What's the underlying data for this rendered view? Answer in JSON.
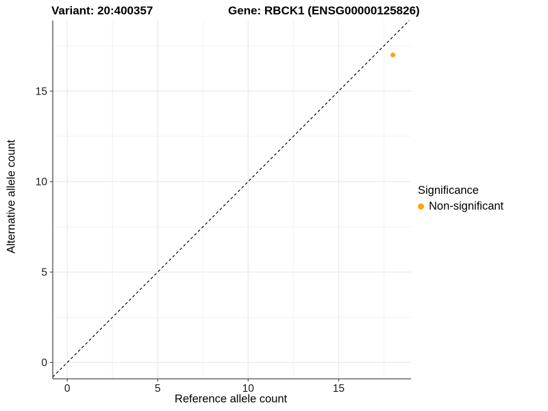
{
  "chart_data": {
    "type": "scatter",
    "title_left": "Variant: 20:400357",
    "title_right": "Gene: RBCK1 (ENSG00000125826)",
    "xlabel": "Reference allele count",
    "ylabel": "Alternative allele count",
    "xlim": [
      -0.8,
      19.0
    ],
    "ylim": [
      -0.9,
      18.9
    ],
    "x_ticks": [
      0,
      5,
      10,
      15
    ],
    "y_ticks": [
      0,
      5,
      10,
      15
    ],
    "x_minor_gridlines": [
      2.5,
      7.5,
      12.5,
      17.5
    ],
    "y_minor_gridlines": [
      2.5,
      7.5,
      12.5,
      17.5
    ],
    "grid": true,
    "points": [
      {
        "x": 18,
        "y": 17,
        "series": "Non-significant"
      }
    ],
    "identity_line": {
      "slope": 1,
      "intercept": 0,
      "style": "dashed",
      "color": "#000000"
    },
    "legend": {
      "title": "Significance",
      "position": "right",
      "items": [
        {
          "label": "Non-significant",
          "color": "#FFA500"
        }
      ]
    },
    "colors": {
      "point": "#FFA500",
      "grid_major": "#E8E8E8",
      "grid_minor": "#F2F2F2",
      "axis_line": "#4A4A4A",
      "tick_text": "#1A1A1A"
    }
  }
}
